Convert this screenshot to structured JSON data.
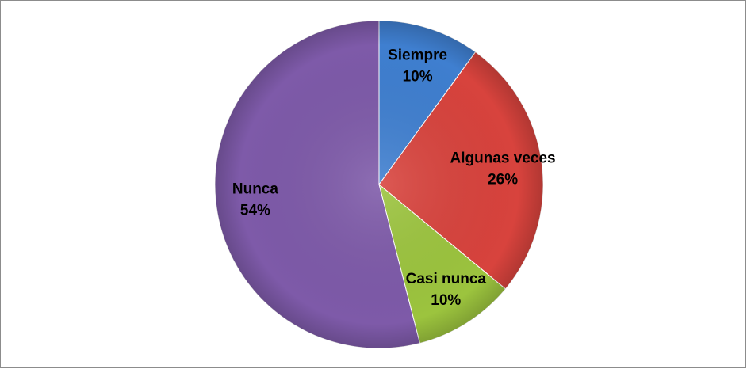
{
  "chart_data": {
    "type": "pie",
    "categories": [
      "Siempre",
      "Algunas veces",
      "Casi nunca",
      "Nunca"
    ],
    "values": [
      10,
      26,
      10,
      54
    ],
    "value_labels": [
      "10%",
      "26%",
      "10%",
      "54%"
    ],
    "colors": [
      "#3f7fd0",
      "#d8433d",
      "#9cc43e",
      "#7e5aa9"
    ]
  }
}
